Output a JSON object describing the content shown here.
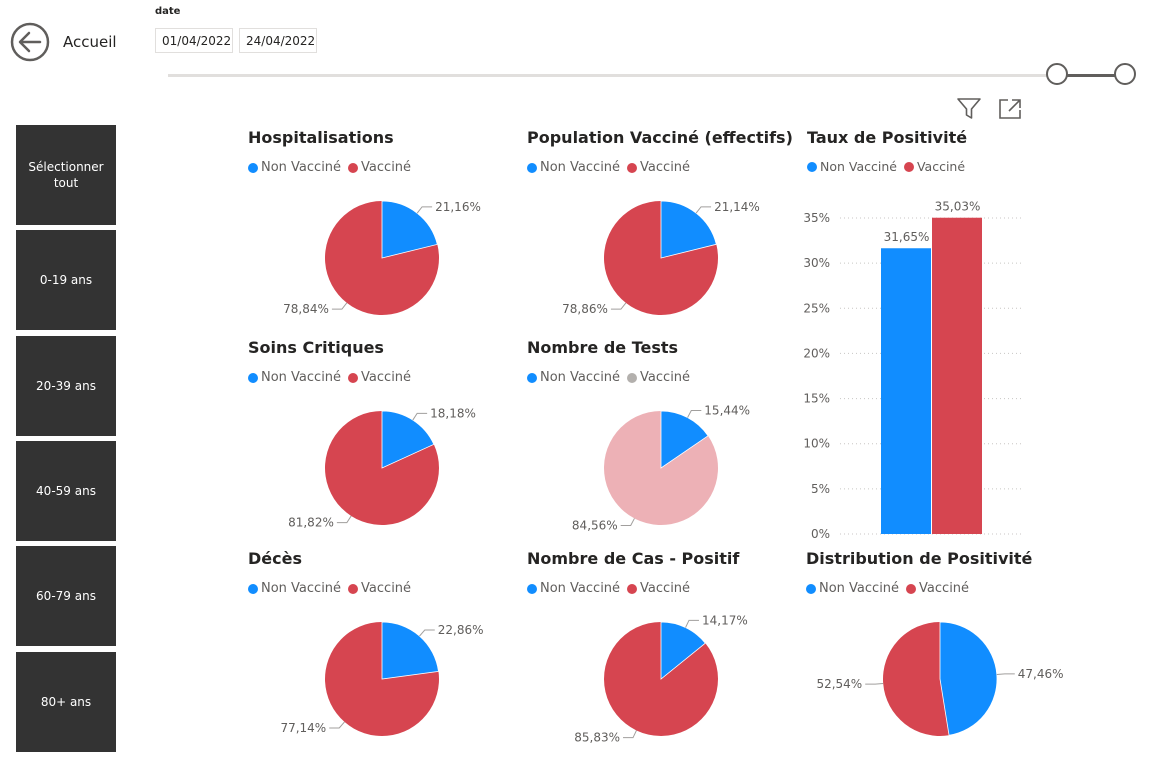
{
  "nav": {
    "home_label": "Accueil"
  },
  "date_filter": {
    "title": "date",
    "start": "01/04/2022",
    "end": "24/04/2022"
  },
  "age_groups": [
    "Sélectionner tout",
    "0-19 ans",
    "20-39 ans",
    "40-59 ans",
    "60-79 ans",
    "80+ ans"
  ],
  "colors": {
    "non_vaccine": "#118dff",
    "vaccine": "#d64550",
    "vaccine_faded": "#edb1b6",
    "legend_gray": "#b3b0ad",
    "button_bg": "#333333"
  },
  "pies": [
    {
      "title": "Hospitalisations",
      "legend": [
        "Non Vacciné",
        "Vacciné"
      ],
      "non_vaccine_pct": 21.16,
      "labels": [
        "21,16%",
        "78,84%"
      ],
      "faded": false
    },
    {
      "title": "Population Vacciné (effectifs)",
      "legend": [
        "Non Vacciné",
        "Vacciné"
      ],
      "non_vaccine_pct": 21.14,
      "labels": [
        "21,14%",
        "78,86%"
      ],
      "faded": false
    },
    {
      "title": "Soins Critiques",
      "legend": [
        "Non Vacciné",
        "Vacciné"
      ],
      "non_vaccine_pct": 18.18,
      "labels": [
        "18,18%",
        "81,82%"
      ],
      "faded": false
    },
    {
      "title": "Nombre de Tests",
      "legend": [
        "Non Vacciné",
        "Vacciné"
      ],
      "non_vaccine_pct": 15.44,
      "labels": [
        "15,44%",
        "84,56%"
      ],
      "faded": true
    },
    {
      "title": "Décès",
      "legend": [
        "Non Vacciné",
        "Vacciné"
      ],
      "non_vaccine_pct": 22.86,
      "labels": [
        "22,86%",
        "77,14%"
      ],
      "faded": false
    },
    {
      "title": "Nombre de Cas - Positif",
      "legend": [
        "Non Vacciné",
        "Vacciné"
      ],
      "non_vaccine_pct": 14.17,
      "labels": [
        "14,17%",
        "85,83%"
      ],
      "faded": false
    },
    {
      "title": "Distribution de Positivité",
      "legend": [
        "Non Vacciné",
        "Vacciné"
      ],
      "non_vaccine_pct": 47.46,
      "labels": [
        "47,46%",
        "52,54%"
      ],
      "faded": false
    }
  ],
  "chart_data": {
    "type": "bar",
    "title": "Taux de Positivité",
    "legend": [
      "Non Vacciné",
      "Vacciné"
    ],
    "series": [
      {
        "name": "Non Vacciné",
        "values": [
          31.65
        ],
        "label": "31,65%"
      },
      {
        "name": "Vacciné",
        "values": [
          35.03
        ],
        "label": "35,03%"
      }
    ],
    "ylim": [
      0,
      35
    ],
    "yticks": [
      "0%",
      "5%",
      "10%",
      "15%",
      "20%",
      "25%",
      "30%",
      "35%"
    ],
    "grid": true
  }
}
